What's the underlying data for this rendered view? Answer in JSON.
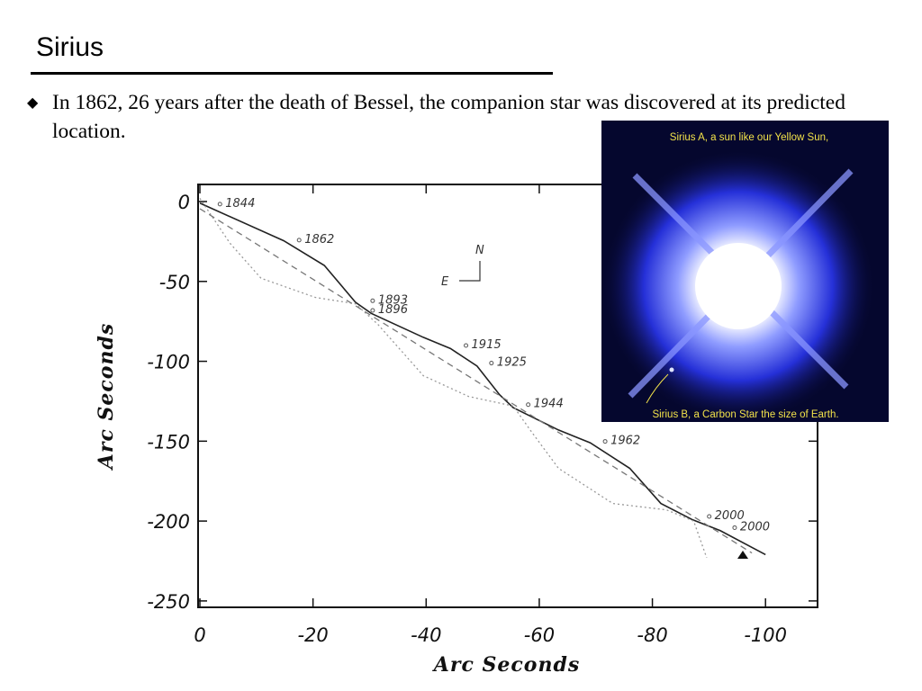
{
  "title": "Sirius",
  "bullet": "In 1862, 26 years after the death of Bessel, the companion star was discovered at its predicted location.",
  "chart_data": {
    "type": "line",
    "xlabel": "Arc Seconds",
    "ylabel": "Arc Seconds",
    "xlim": [
      0,
      -109.2
    ],
    "ylim": [
      -254,
      10.7
    ],
    "xticks": [
      0,
      -20,
      -40,
      -60,
      -80,
      -100
    ],
    "yticks": [
      0,
      -50,
      -100,
      -150,
      -200,
      -250
    ],
    "compass": [
      "N",
      "E"
    ],
    "series": [
      {
        "color": "#222222",
        "style": "solid",
        "x": [
          0,
          -14.8,
          -22,
          -27.5,
          -30.3,
          -39.5,
          -44.3,
          -49,
          -53,
          -55.4,
          -63.4,
          -69,
          -76,
          -81.5,
          -87,
          -92,
          -100
        ],
        "values": [
          -1,
          -24.5,
          -40,
          -63,
          -70,
          -85,
          -92,
          -103,
          -121,
          -129,
          -143,
          -151,
          -167,
          -189,
          -199,
          -206,
          -221
        ]
      },
      {
        "color": "#999999",
        "style": "dotted",
        "x": [
          0,
          -5.3,
          -10.8,
          -20.4,
          -27.5,
          -31.5,
          -39.5,
          -47.5,
          -55.4,
          -58.6,
          -63.4,
          -73,
          -82.5,
          -87.3,
          -89.6
        ],
        "values": [
          2,
          -26,
          -48,
          -60,
          -64,
          -77,
          -109,
          -122,
          -128,
          -144,
          -167,
          -189,
          -193,
          -200,
          -223
        ]
      },
      {
        "color": "#777777",
        "style": "dashed",
        "x": [
          0,
          -97.6
        ],
        "values": [
          -4.5,
          -220
        ]
      }
    ],
    "annotations": [
      {
        "text": "1844",
        "x": -4.5,
        "y": -0.5
      },
      {
        "text": "1862",
        "x": -18.5,
        "y": -23
      },
      {
        "text": "1893",
        "x": -31.5,
        "y": -61
      },
      {
        "text": "1896",
        "x": -31.5,
        "y": -67
      },
      {
        "text": "1915",
        "x": -48,
        "y": -89
      },
      {
        "text": "1925",
        "x": -52.5,
        "y": -100
      },
      {
        "text": "1944",
        "x": -59,
        "y": -126
      },
      {
        "text": "1962",
        "x": -72.6,
        "y": -149
      },
      {
        "text": "2000",
        "x": -91,
        "y": -196
      },
      {
        "text": "2000",
        "x": -95.5,
        "y": -203
      }
    ]
  },
  "inset": {
    "caption_top": "Sirius A, a sun like our Yellow Sun,",
    "caption_bottom": "Sirius B, a Carbon Star the size of Earth."
  }
}
